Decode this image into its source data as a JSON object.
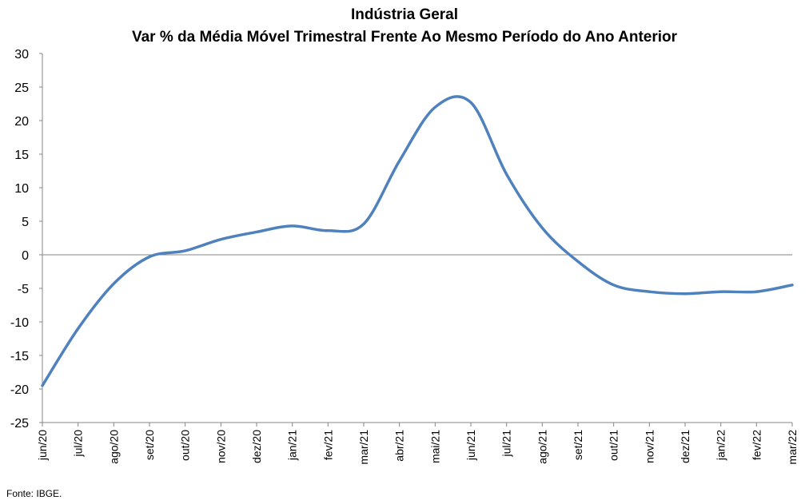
{
  "chart_data": {
    "type": "line",
    "title": "Indústria Geral",
    "subtitle": "Var % da Média Móvel Trimestral Frente Ao Mesmo Período do Ano Anterior",
    "xlabel": "",
    "ylabel": "",
    "ylim": [
      -25,
      30
    ],
    "yticks": [
      30,
      25,
      20,
      15,
      10,
      5,
      0,
      -5,
      -10,
      -15,
      -20,
      -25
    ],
    "categories": [
      "jun/20",
      "jul/20",
      "ago/20",
      "set/20",
      "out/20",
      "nov/20",
      "dez/20",
      "jan/21",
      "fev/21",
      "mar/21",
      "abr/21",
      "mai/21",
      "jun/21",
      "jul/21",
      "ago/21",
      "set/21",
      "out/21",
      "nov/21",
      "dez/21",
      "jan/22",
      "fev/22",
      "mar/22"
    ],
    "series": [
      {
        "color": "#4F81BD",
        "values": [
          -19.5,
          -11.0,
          -4.3,
          -0.3,
          0.6,
          2.3,
          3.4,
          4.3,
          3.6,
          4.6,
          14.0,
          22.0,
          22.7,
          12.0,
          4.0,
          -1.0,
          -4.5,
          -5.5,
          -5.8,
          -5.5,
          -5.5,
          -4.5
        ]
      }
    ],
    "grid": false,
    "legend": "none",
    "source": "Fonte: IBGE."
  }
}
